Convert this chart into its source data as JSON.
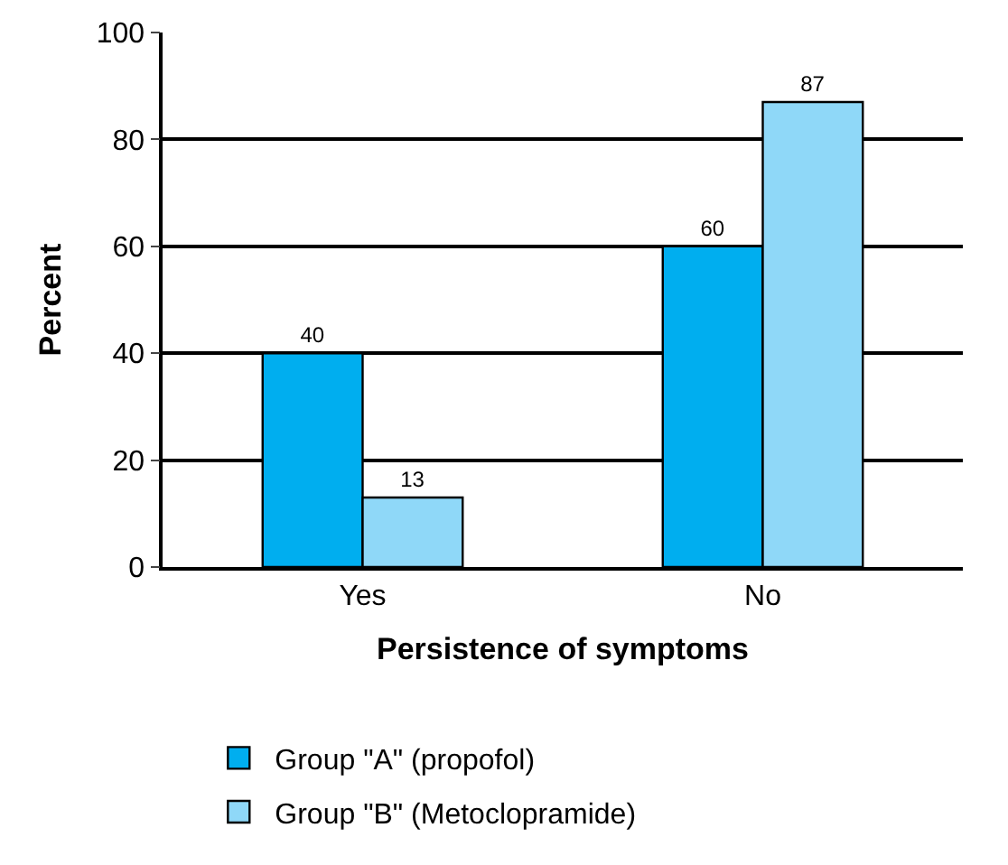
{
  "chart_data": {
    "type": "bar",
    "xlabel": "Persistence of symptoms",
    "ylabel": "Percent",
    "categories": [
      "Yes",
      "No"
    ],
    "series": [
      {
        "name": "Group \"A\" (propofol)",
        "color": "#00aeef",
        "values": [
          40,
          60
        ]
      },
      {
        "name": "Group \"B\" (Metoclopramide)",
        "color": "#8fd8f8",
        "values": [
          13,
          87
        ]
      }
    ],
    "ylim": [
      0,
      100
    ],
    "yticks": [
      0,
      20,
      40,
      60,
      80,
      100
    ],
    "grid": "y",
    "legend": "bottom",
    "data_labels": true
  }
}
